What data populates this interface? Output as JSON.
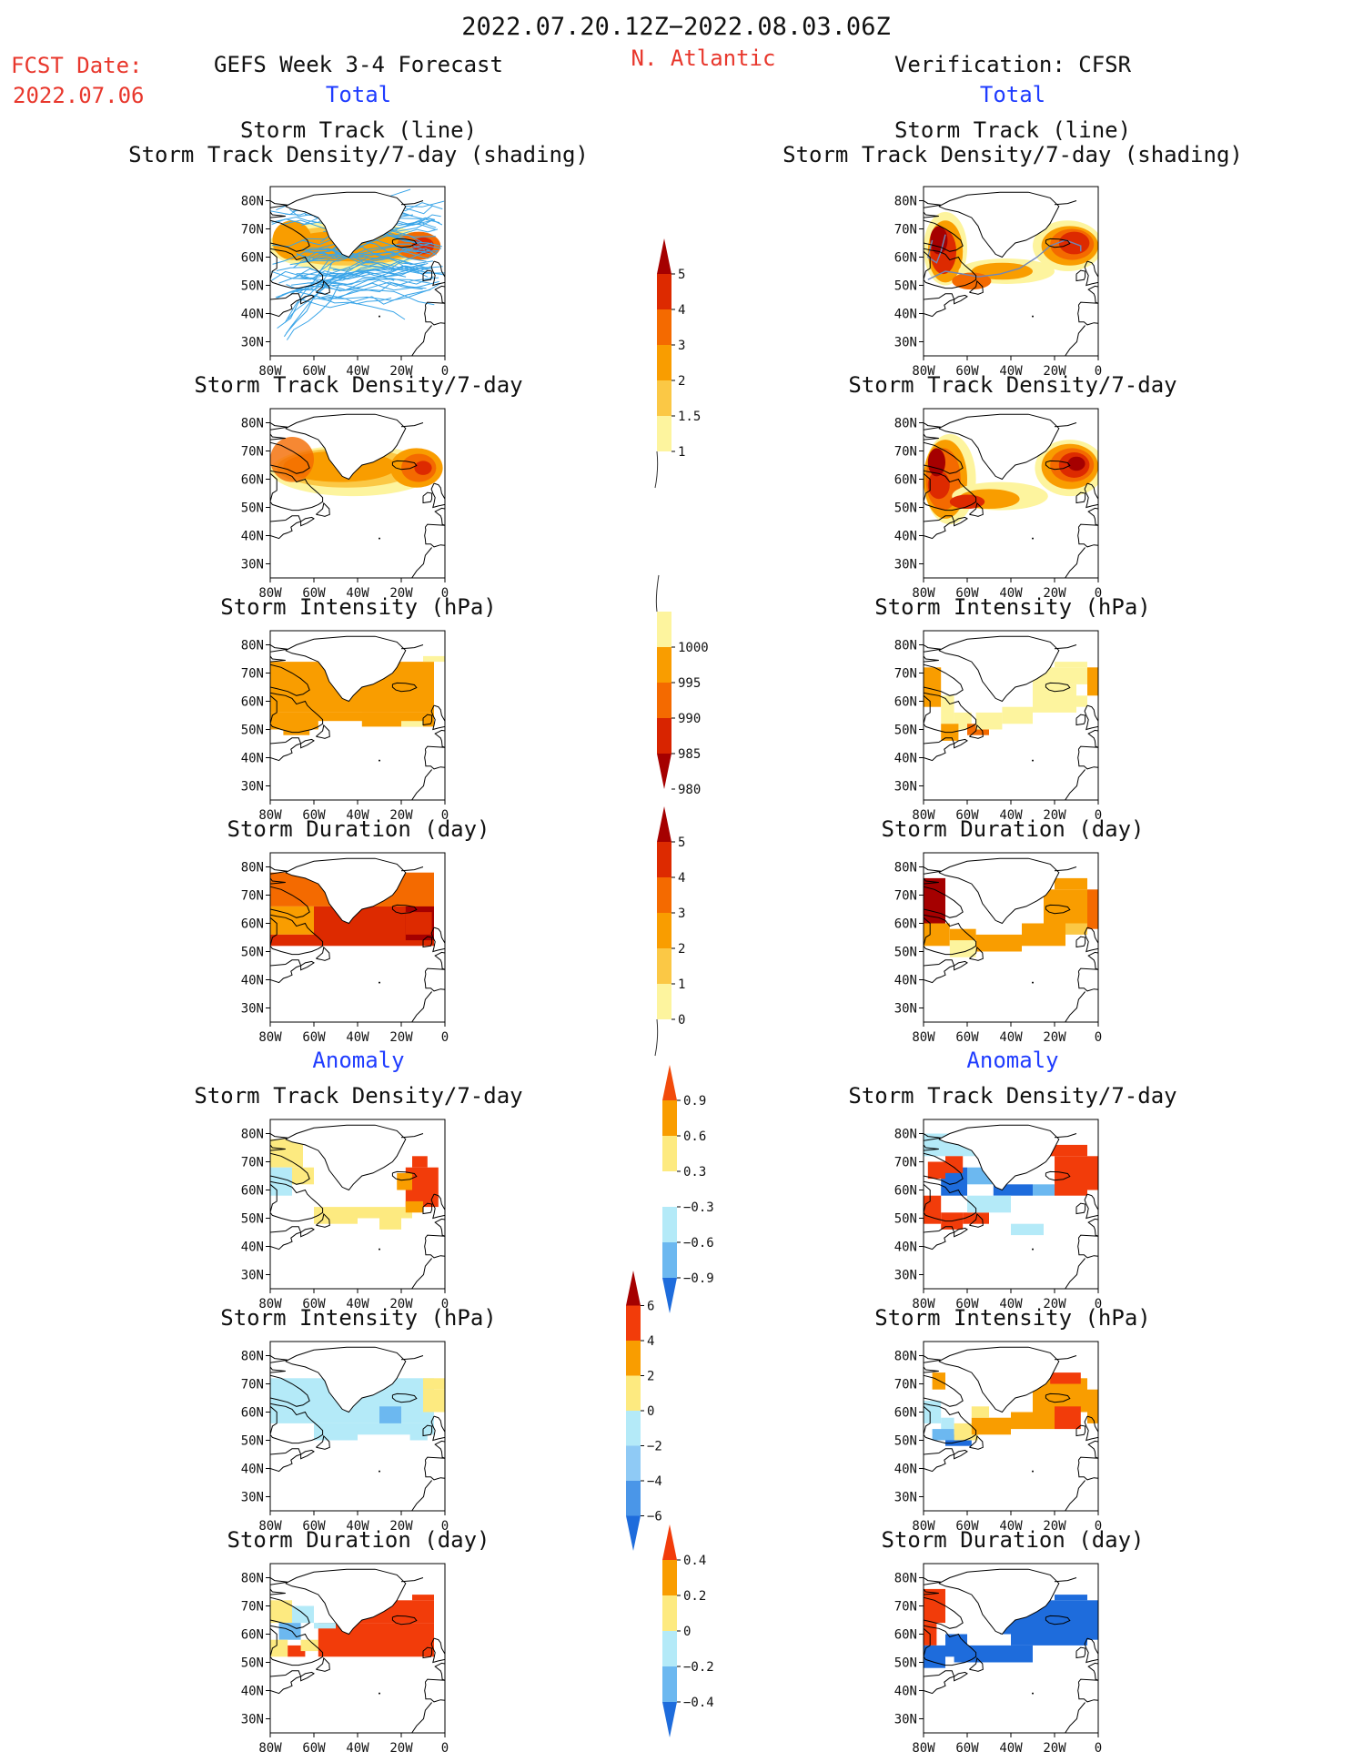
{
  "header": {
    "date_range": "2022.07.20.12Z−2022.08.03.06Z",
    "fcst_label": "FCST Date:",
    "fcst_date": "2022.07.06",
    "left_title": "GEFS Week 3-4 Forecast",
    "region": "N. Atlantic",
    "right_title": "Verification: CFSR"
  },
  "sections": {
    "total_label": "Total",
    "anomaly_label": "Anomaly"
  },
  "map_axes": {
    "lat_labels": [
      "80N",
      "70N",
      "60N",
      "50N",
      "40N",
      "30N"
    ],
    "lon_labels": [
      "80W",
      "60W",
      "40W",
      "20W",
      "0"
    ]
  },
  "chart_data": [
    {
      "type": "heatmap",
      "panels": [
        {
          "row": "total",
          "title": "Storm Track (line)",
          "subtitle": "Storm Track Density/7-day (shading)",
          "forecast_pattern": "tracks",
          "verification_pattern": "total_tracks"
        },
        {
          "row": "total",
          "title": "Storm Track Density/7-day",
          "forecast_pattern": "density",
          "verification_pattern": "density_obs"
        },
        {
          "row": "total",
          "title": "Storm Intensity (hPa)",
          "forecast_pattern": "intensity",
          "verification_pattern": "intensity_obs"
        },
        {
          "row": "total",
          "title": "Storm Duration (day)",
          "forecast_pattern": "duration",
          "verification_pattern": "duration_obs"
        },
        {
          "row": "anomaly",
          "title": "Storm Track Density/7-day",
          "forecast_pattern": "anom_density",
          "verification_pattern": "anom_density_obs"
        },
        {
          "row": "anomaly",
          "title": "Storm Intensity (hPa)",
          "forecast_pattern": "anom_intensity",
          "verification_pattern": "anom_intensity_obs"
        },
        {
          "row": "anomaly",
          "title": "Storm Duration (day)",
          "forecast_pattern": "anom_duration",
          "verification_pattern": "anom_duration_obs"
        }
      ],
      "colorbars": [
        {
          "name": "density",
          "labels": [
            "5",
            "4",
            "3",
            "2",
            "1.5",
            "1"
          ],
          "colors": [
            "#a50000",
            "#dd2a00",
            "#f46a00",
            "#f99d00",
            "#fbc845",
            "#fdf49e"
          ]
        },
        {
          "name": "intensity",
          "labels": [
            "1000",
            "995",
            "990",
            "985",
            "980"
          ],
          "colors": [
            "#fdf49e",
            "#f99d00",
            "#f46a00",
            "#d82400",
            "#a50000"
          ]
        },
        {
          "name": "duration",
          "labels": [
            "5",
            "4",
            "3",
            "2",
            "1",
            "0"
          ],
          "colors": [
            "#a50000",
            "#dd2a00",
            "#f46a00",
            "#f99d00",
            "#fbc845",
            "#fdf49e"
          ]
        },
        {
          "name": "anom_density",
          "labels": [
            "0.9",
            "0.6",
            "0.3",
            "−0.3",
            "−0.6",
            "−0.9"
          ],
          "colors": [
            "#f24b0b",
            "#f99d00",
            "#fdea80",
            "#ffffff",
            "#b4eaf8",
            "#6cb8f0",
            "#1e6cdc"
          ]
        },
        {
          "name": "anom_intensity",
          "labels": [
            "6",
            "4",
            "2",
            "0",
            "−2",
            "−4",
            "−6"
          ],
          "colors": [
            "#a50000",
            "#f23c0a",
            "#f99d00",
            "#fdea80",
            "#b4eaf8",
            "#8fcaf5",
            "#4a96e8",
            "#1e6cdc"
          ]
        },
        {
          "name": "anom_duration",
          "labels": [
            "0.4",
            "0.2",
            "0",
            "−0.2",
            "−0.4"
          ],
          "colors": [
            "#f23c0a",
            "#f99d00",
            "#fdea80",
            "#b4eaf8",
            "#6cb8f0",
            "#1e6cdc"
          ]
        }
      ]
    }
  ],
  "colors": {
    "title_red": "#e8372c",
    "blue_label": "#1f3cff",
    "track_blue": "#3aa5e8",
    "coast": "#000000"
  }
}
